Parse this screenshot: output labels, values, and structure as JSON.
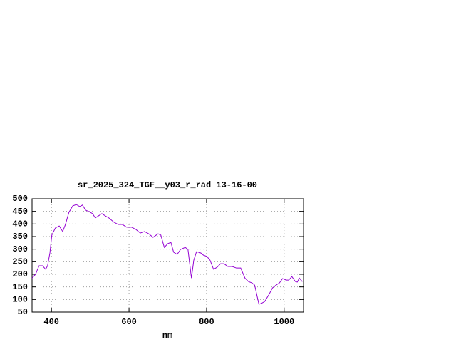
{
  "chart_data": {
    "type": "line",
    "title": "sr_2025_324_TGF__y03_r_rad 13-16-00",
    "xlabel": "nm",
    "x": [
      350,
      359,
      368,
      377,
      385,
      390,
      396,
      401,
      410,
      420,
      429,
      436,
      445,
      455,
      464,
      473,
      480,
      488,
      497,
      506,
      513,
      521,
      530,
      539,
      548,
      561,
      572,
      583,
      594,
      607,
      618,
      629,
      640,
      651,
      662,
      675,
      682,
      691,
      700,
      708,
      715,
      724,
      733,
      745,
      752,
      761,
      767,
      774,
      785,
      792,
      801,
      809,
      818,
      827,
      836,
      845,
      855,
      866,
      877,
      888,
      899,
      908,
      917,
      924,
      935,
      943,
      950,
      961,
      970,
      979,
      988,
      996,
      1005,
      1012,
      1020,
      1029,
      1034,
      1039,
      1047
    ],
    "values": [
      185,
      200,
      234,
      234,
      220,
      234,
      285,
      356,
      384,
      392,
      370,
      398,
      446,
      472,
      477,
      469,
      475,
      455,
      449,
      441,
      424,
      432,
      441,
      432,
      424,
      407,
      398,
      398,
      387,
      387,
      378,
      364,
      370,
      361,
      347,
      361,
      356,
      307,
      322,
      327,
      288,
      279,
      299,
      307,
      299,
      185,
      256,
      290,
      285,
      276,
      271,
      256,
      220,
      228,
      242,
      242,
      231,
      231,
      225,
      225,
      185,
      171,
      166,
      157,
      81,
      86,
      92,
      120,
      146,
      157,
      166,
      183,
      177,
      177,
      191,
      171,
      169,
      185,
      171
    ],
    "color": "#9400d3",
    "xlim": [
      350,
      1050
    ],
    "ylim": [
      50,
      500
    ],
    "xticks": [
      400,
      600,
      800,
      1000
    ],
    "yticks": [
      50,
      100,
      150,
      200,
      250,
      300,
      350,
      400,
      450,
      500
    ],
    "grid": true
  }
}
